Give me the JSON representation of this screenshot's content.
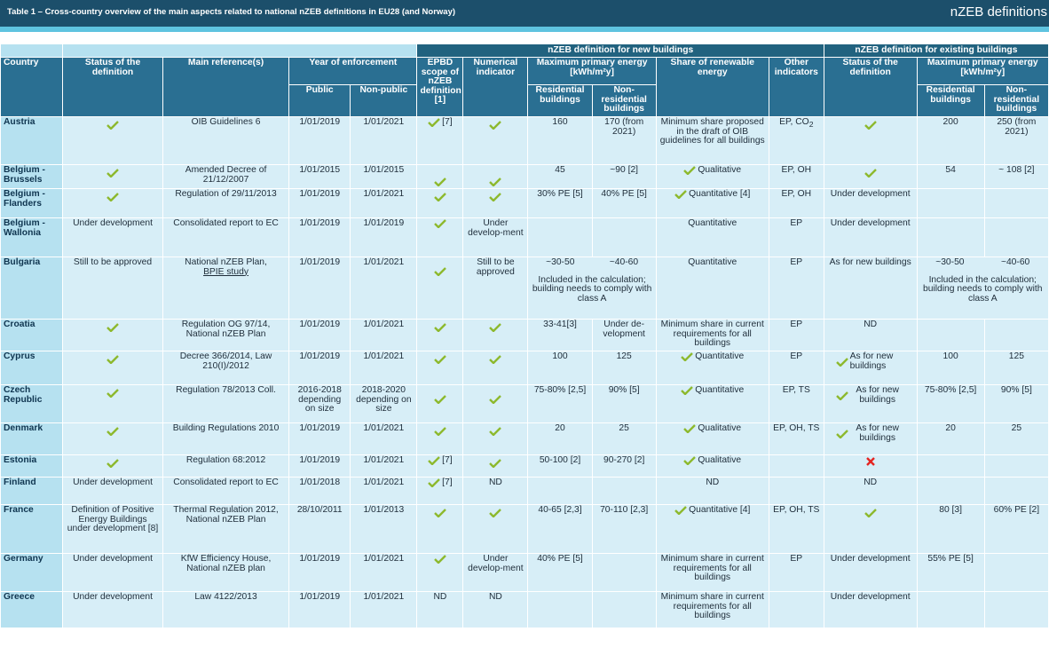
{
  "header": {
    "table_title": "Table 1 – Cross-country overview of the main aspects related to national nZEB definitions in EU28 (and Norway)",
    "section_title": "nZEB definitions"
  },
  "colors": {
    "header_bar": "#1c4f6b",
    "stripe": "#5fc3df",
    "check": "#8db92e",
    "cross": "#e52420"
  },
  "table": {
    "group_new": "nZEB definition for new buildings",
    "group_existing": "nZEB definition for existing buildings",
    "col_country": "Country",
    "col_status": "Status of the definition",
    "col_reference": "Main reference(s)",
    "col_year": "Year of enforcement",
    "col_year_public": "Public",
    "col_year_nonpublic": "Non-public",
    "col_epbd": "EPBD scope of nZEB definition [1]",
    "col_numerical": "Numerical indicator",
    "col_maxpe": "Maximum primary energy [kWh/m²y]",
    "col_res": "Residential buildings",
    "col_nonres": "Non-residential buildings",
    "col_renew": "Share of renewable energy",
    "col_other": "Other indicators",
    "col_ex_status": "Status of the definition",
    "col_ex_maxpe": "Maximum primary energy [kWh/m²y]",
    "col_ex_res": "Residential buildings",
    "col_ex_nonres": "Non-residential buildings"
  },
  "rows": {
    "austria": {
      "country": "Austria",
      "ref": "OIB Guidelines 6",
      "pub": "1/01/2019",
      "nonpub": "1/01/2021",
      "epbd_note": "[7]",
      "res": "160",
      "nonres": "170 (from 2021)",
      "renew": "Minimum share proposed in the draft of OIB guidelines for all buildings",
      "other_main": "EP, CO",
      "other_sub": "2",
      "ex_res": "200",
      "ex_nonres": "250 (from 2021)"
    },
    "brussels": {
      "country": "Belgium - Brussels",
      "ref": "Amended Decree of 21/12/2007",
      "pub": "1/01/2015",
      "nonpub": "1/01/2015",
      "res": "45",
      "nonres": "~90 [2]",
      "renew": "Qualitative",
      "other": "EP, OH",
      "ex_res": "54",
      "ex_nonres": "~ 108 [2]"
    },
    "flanders": {
      "country": "Belgium - Flanders",
      "ref": "Regulation of 29/11/2013",
      "pub": "1/01/2019",
      "nonpub": "1/01/2021",
      "res": "30% PE [5]",
      "nonres": "40% PE [5]",
      "renew": "Quantitative [4]",
      "other": "EP, OH",
      "ex_status": "Under development"
    },
    "wallonia": {
      "country": "Belgium - Wallonia",
      "status": "Under development",
      "ref": "Consolidated report to EC",
      "pub": "1/01/2019",
      "nonpub": "1/01/2019",
      "numerical": "Under develop-ment",
      "renew": "Quantitative",
      "other": "EP",
      "ex_status": "Under development"
    },
    "bulgaria": {
      "country": "Bulgaria",
      "status": "Still to be approved",
      "ref_line1": "National nZEB Plan,",
      "ref_line2": "BPIE study",
      "pub": "1/01/2019",
      "nonpub": "1/01/2021",
      "numerical": "Still to be approved",
      "res": "~30-50",
      "nonres": "~40-60",
      "pe_note": "Included in the calculation; building needs to comply with class A",
      "renew": "Quantitative",
      "other": "EP",
      "ex_status": "As for new buildings",
      "ex_res": "~30-50",
      "ex_nonres": "~40-60",
      "ex_note": "Included in the calculation; building needs to comply with class A"
    },
    "croatia": {
      "country": "Croatia",
      "ref": "Regulation OG 97/14, National nZEB Plan",
      "pub": "1/01/2019",
      "nonpub": "1/01/2021",
      "res": "33-41[3]",
      "nonres": "Under de-velopment",
      "renew": "Minimum share in current requirements for all buildings",
      "other": "EP",
      "ex_status": "ND"
    },
    "cyprus": {
      "country": "Cyprus",
      "ref": "Decree 366/2014, Law 210(I)/2012",
      "pub": "1/01/2019",
      "nonpub": "1/01/2021",
      "res": "100",
      "nonres": "125",
      "renew": "Quantitative",
      "other": "EP",
      "ex_status": "As for new buildings",
      "ex_res": "100",
      "ex_nonres": "125"
    },
    "czech": {
      "country": "Czech Republic",
      "ref": "Regulation 78/2013 Coll.",
      "pub": "2016-2018 depending on size",
      "nonpub": "2018-2020 depending on size",
      "res": "75-80% [2,5]",
      "nonres": "90% [5]",
      "renew": "Quantitative",
      "other": "EP, TS",
      "ex_status": "As for new buildings",
      "ex_res": "75-80% [2,5]",
      "ex_nonres": "90% [5]"
    },
    "denmark": {
      "country": "Denmark",
      "ref": "Building Regulations 2010",
      "pub": "1/01/2019",
      "nonpub": "1/01/2021",
      "res": "20",
      "nonres": "25",
      "renew": "Qualitative",
      "other": "EP, OH, TS",
      "ex_status": "As for new buildings",
      "ex_res": "20",
      "ex_nonres": "25"
    },
    "estonia": {
      "country": "Estonia",
      "ref": "Regulation 68:2012",
      "pub": "1/01/2019",
      "nonpub": "1/01/2021",
      "epbd_note": "[7]",
      "res": "50-100 [2]",
      "nonres": "90-270 [2]",
      "renew": "Qualitative"
    },
    "finland": {
      "country": "Finland",
      "status": "Under development",
      "ref": "Consolidated report to EC",
      "pub": "1/01/2018",
      "nonpub": "1/01/2021",
      "epbd_note": "[7]",
      "numerical": "ND",
      "renew": "ND",
      "ex_status": "ND"
    },
    "france": {
      "country": "France",
      "status": "Definition of Positive Energy Buildings under development [8]",
      "ref": "Thermal Regulation 2012, National nZEB Plan",
      "pub": "28/10/2011",
      "nonpub": "1/01/2013",
      "res": "40-65 [2,3]",
      "nonres": "70-110 [2,3]",
      "renew": "Quantitative [4]",
      "other": "EP, OH, TS",
      "ex_res": "80 [3]",
      "ex_nonres": "60% PE [2]"
    },
    "germany": {
      "country": "Germany",
      "status": "Under development",
      "ref": "KfW Efficiency House, National nZEB plan",
      "pub": "1/01/2019",
      "nonpub": "1/01/2021",
      "numerical": "Under develop-ment",
      "res": "40% PE [5]",
      "renew": "Minimum share in current requirements for all buildings",
      "other": "EP",
      "ex_status": "Under development",
      "ex_res": "55% PE [5]"
    },
    "greece": {
      "country": "Greece",
      "status": "Under development",
      "ref": "Law 4122/2013",
      "pub": "1/01/2019",
      "nonpub": "1/01/2021",
      "epbd": "ND",
      "numerical": "ND",
      "renew": "Minimum share in current requirements for all buildings",
      "ex_status": "Under development"
    }
  }
}
